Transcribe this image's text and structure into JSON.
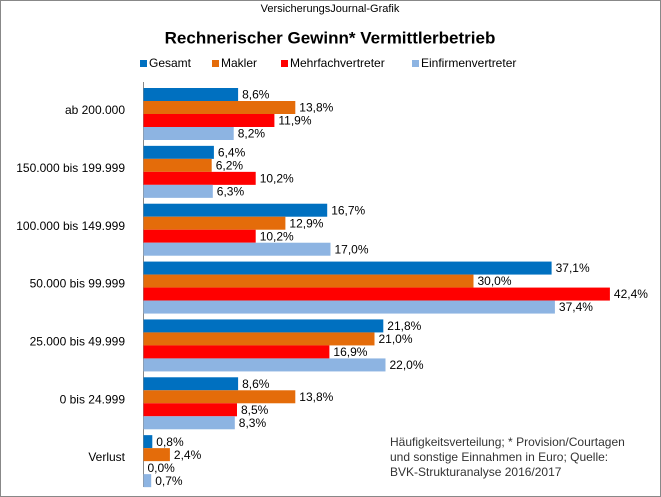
{
  "chart_data": {
    "type": "hbar",
    "header": "VersicherungsJournal-Grafik",
    "title": "Rechnerischer Gewinn* Vermittlerbetrieb",
    "categories": [
      "ab 200.000",
      "150.000 bis 199.999",
      "100.000 bis 149.999",
      "50.000 bis 99.999",
      "25.000 bis 49.999",
      "0 bis 24.999",
      "Verlust"
    ],
    "series": [
      {
        "name": "Gesamt",
        "color": "#0070c0",
        "values": [
          8.6,
          6.4,
          16.7,
          37.1,
          21.8,
          8.6,
          0.8
        ],
        "value_labels": [
          "8,6%",
          "6,4%",
          "16,7%",
          "37,1%",
          "21,8%",
          "8,6%",
          "0,8%"
        ]
      },
      {
        "name": "Makler",
        "color": "#e46c0a",
        "values": [
          13.8,
          6.2,
          12.9,
          30.0,
          21.0,
          13.8,
          2.4
        ],
        "value_labels": [
          "13,8%",
          "6,2%",
          "12,9%",
          "30,0%",
          "21,0%",
          "13,8%",
          "2,4%"
        ]
      },
      {
        "name": "Mehrfachvertreter",
        "color": "#ff0000",
        "values": [
          11.9,
          10.2,
          10.2,
          42.4,
          16.9,
          8.5,
          0.0
        ],
        "value_labels": [
          "11,9%",
          "10,2%",
          "10,2%",
          "42,4%",
          "16,9%",
          "8,5%",
          "0,0%"
        ]
      },
      {
        "name": "Einfirmenvertreter",
        "color": "#8db4e2",
        "values": [
          8.2,
          6.3,
          17.0,
          37.4,
          22.0,
          8.3,
          0.7
        ],
        "value_labels": [
          "8,2%",
          "6,3%",
          "17,0%",
          "37,4%",
          "22,0%",
          "8,3%",
          "0,7%"
        ]
      }
    ],
    "note": [
      "Häufigkeitsverteilung;  * Provision/Courtagen",
      "und sonstige Einnahmen in Euro; Quelle:",
      "BVK-Strukturanalyse 2016/2017"
    ]
  }
}
